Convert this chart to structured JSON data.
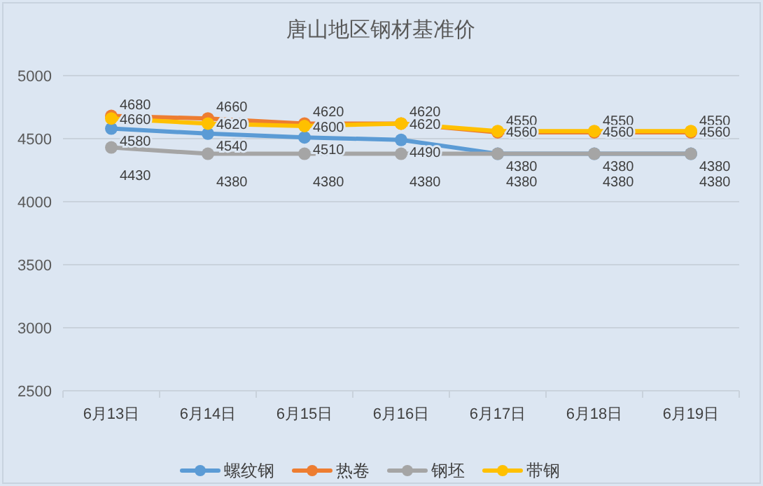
{
  "chart_data": {
    "type": "line",
    "title": "唐山地区钢材基准价",
    "categories": [
      "6月13日",
      "6月14日",
      "6月15日",
      "6月16日",
      "6月17日",
      "6月18日",
      "6月19日"
    ],
    "series": [
      {
        "name": "螺纹钢",
        "color": "#5b9bd5",
        "values": [
          4580,
          4540,
          4510,
          4490,
          4380,
          4380,
          4380
        ]
      },
      {
        "name": "热卷",
        "color": "#ed7d31",
        "values": [
          4680,
          4660,
          4620,
          4620,
          4550,
          4550,
          4550
        ]
      },
      {
        "name": "钢坯",
        "color": "#a5a5a5",
        "values": [
          4430,
          4380,
          4380,
          4380,
          4380,
          4380,
          4380
        ]
      },
      {
        "name": "带钢",
        "color": "#ffc000",
        "values": [
          4660,
          4620,
          4600,
          4620,
          4560,
          4560,
          4560
        ]
      }
    ],
    "ylim": [
      2500,
      5000
    ],
    "yticks": [
      2500,
      3000,
      3500,
      4000,
      4500,
      5000
    ],
    "grid": "y",
    "legend": "bottom",
    "marker": "circle",
    "line_style": "solid",
    "data_labels": true
  }
}
